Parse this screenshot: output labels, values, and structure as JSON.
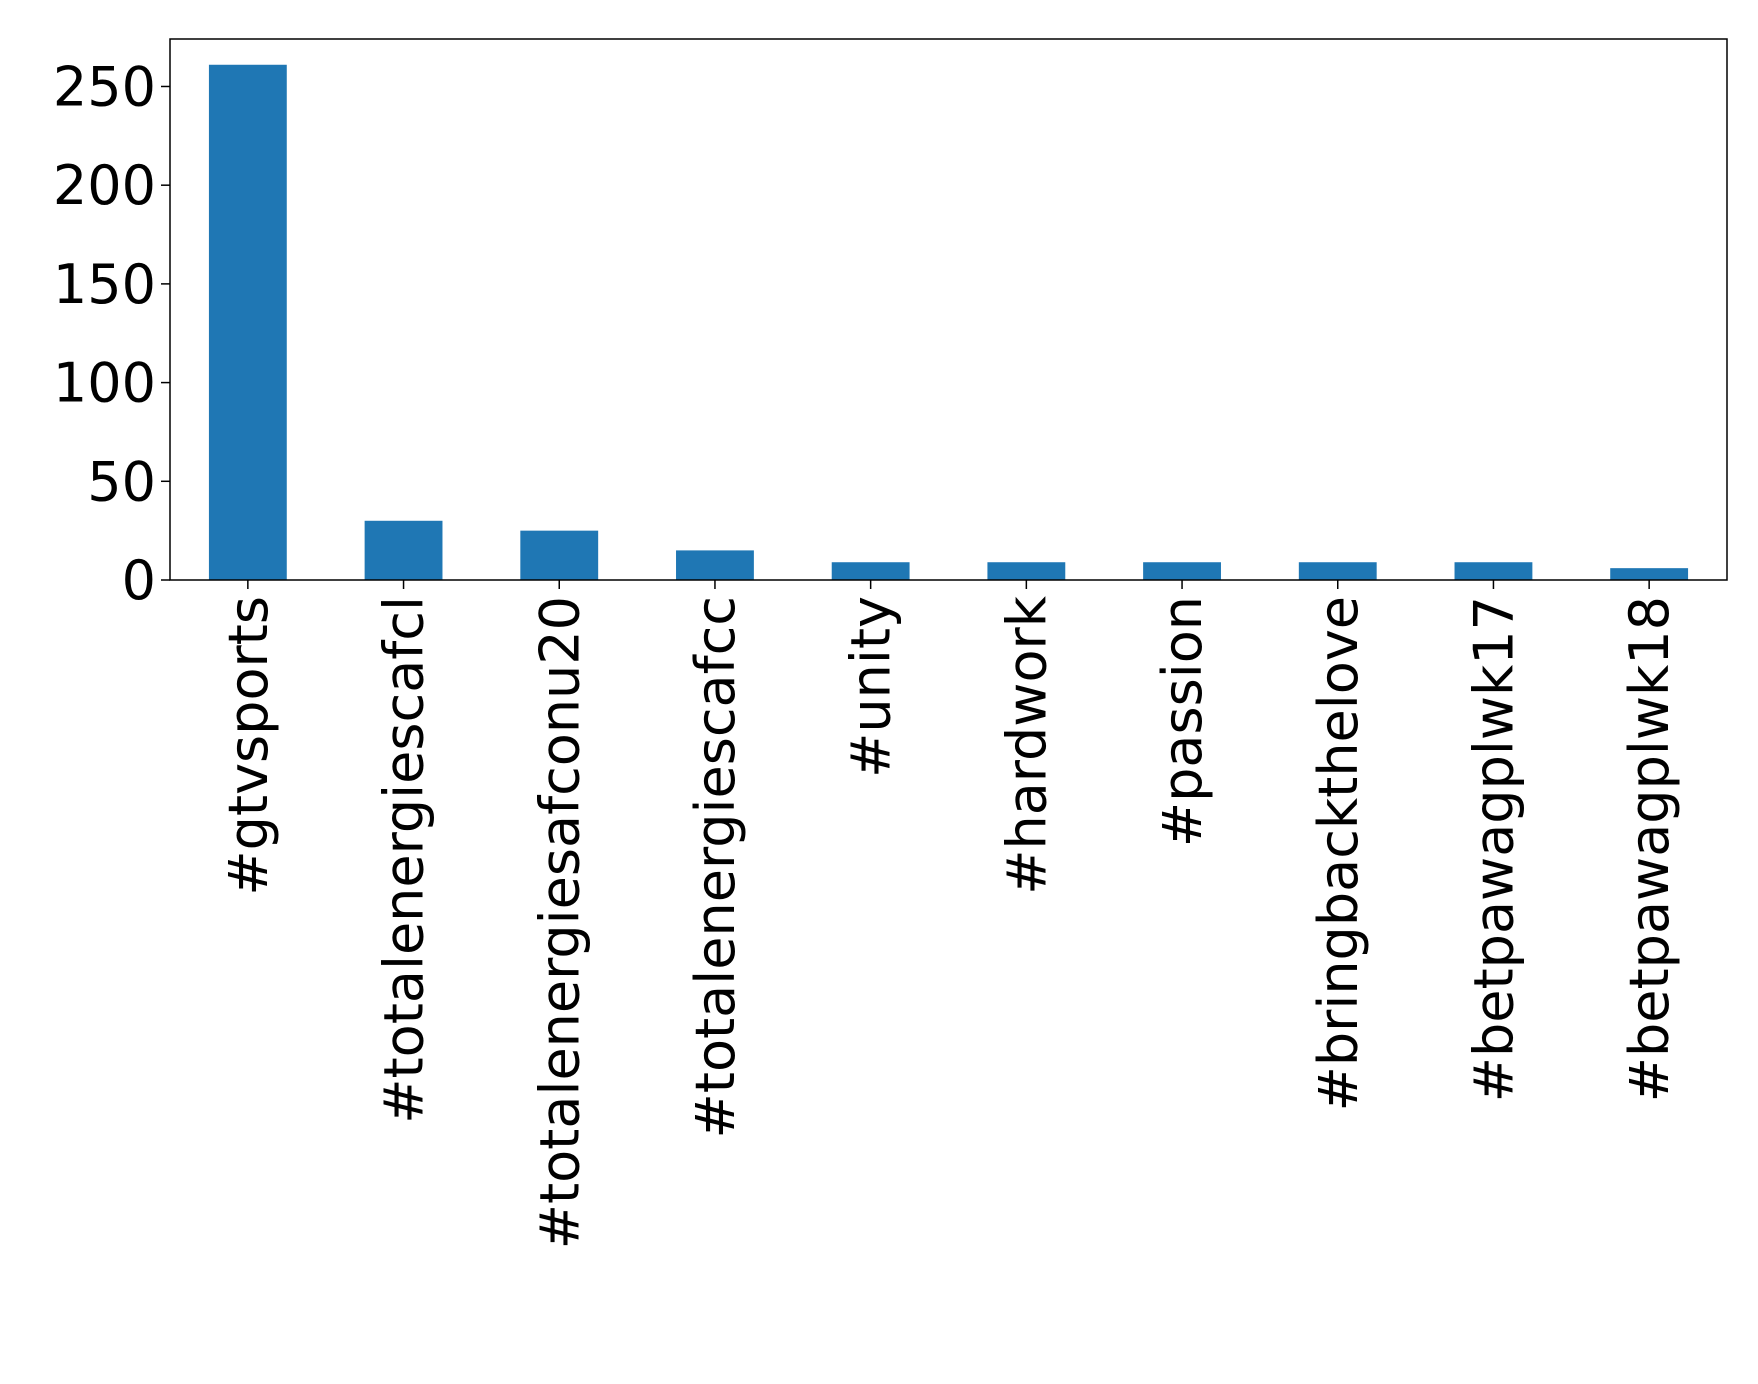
{
  "chart_data": {
    "type": "bar",
    "categories": [
      "#gtvsports",
      "#totalenergiescafcl",
      "#totalenergiesafconu20",
      "#totalenergiescafcc",
      "#unity",
      "#hardwork",
      "#passion",
      "#bringbackthelove",
      "#betpawagplwk17",
      "#betpawagplwk18"
    ],
    "values": [
      261,
      30,
      25,
      15,
      9,
      9,
      9,
      9,
      9,
      6
    ],
    "color": "#1f77b4",
    "ylim": [
      0,
      274.05
    ],
    "yticks": [
      0,
      50,
      100,
      150,
      200,
      250
    ],
    "grid": false
  }
}
